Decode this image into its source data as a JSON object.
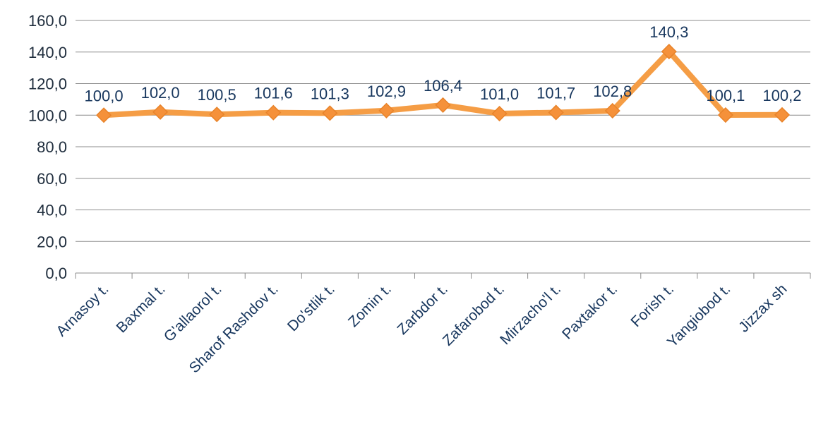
{
  "chart_data": {
    "type": "line",
    "categories": [
      "Arnasoy t.",
      "Baxmal t.",
      "G'allaorol t.",
      "Sharof Rashdov  t.",
      "Do'stlik t.",
      "Zomin t.",
      "Zarbdor t.",
      "Zafarobod t.",
      "Mirzacho'l t.",
      "Paxtakor t.",
      "Forish t.",
      "Yangiobod t.",
      "Jizzax sh"
    ],
    "values": [
      100.0,
      102.0,
      100.5,
      101.6,
      101.3,
      102.9,
      106.4,
      101.0,
      101.7,
      102.8,
      140.3,
      100.1,
      100.2
    ],
    "data_labels": [
      "100,0",
      "102,0",
      "100,5",
      "101,6",
      "101,3",
      "102,9",
      "106,4",
      "101,0",
      "101,7",
      "102,8",
      "140,3",
      "100,1",
      "100,2"
    ],
    "y_ticks": [
      "0,0",
      "20,0",
      "40,0",
      "60,0",
      "80,0",
      "100,0",
      "120,0",
      "140,0",
      "160,0"
    ],
    "ylim": [
      0,
      160
    ],
    "title": "",
    "xlabel": "",
    "ylabel": "",
    "grid": true,
    "legend": "none",
    "line_color": "#f59d45",
    "marker_color": "#f5913a",
    "marker": "diamond"
  }
}
